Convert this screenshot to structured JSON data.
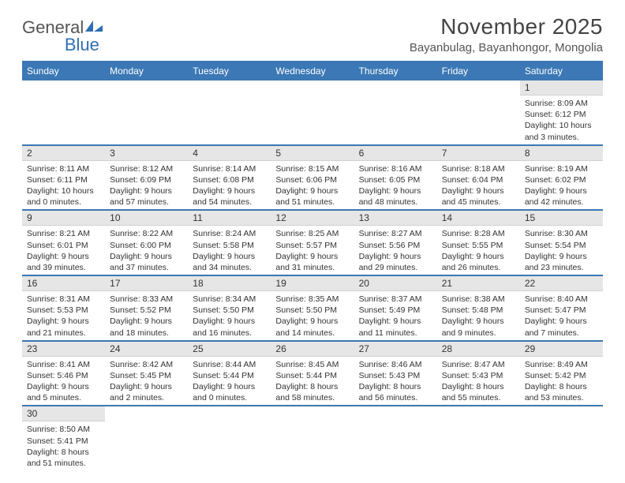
{
  "logo": {
    "text1": "General",
    "text2": "Blue"
  },
  "title": "November 2025",
  "location": "Bayanbulag, Bayanhongor, Mongolia",
  "colors": {
    "header_bg": "#3b78b5",
    "header_text": "#ffffff",
    "daynum_bg": "#e6e6e6",
    "row_border": "#3b78b5",
    "text": "#333333",
    "title_text": "#444444"
  },
  "fonts": {
    "title_size": 28,
    "location_size": 15,
    "th_size": 12,
    "body_size": 10.5
  },
  "day_headers": [
    "Sunday",
    "Monday",
    "Tuesday",
    "Wednesday",
    "Thursday",
    "Friday",
    "Saturday"
  ],
  "weeks": [
    [
      null,
      null,
      null,
      null,
      null,
      null,
      {
        "n": "1",
        "sr": "8:09 AM",
        "ss": "6:12 PM",
        "dl": "10 hours and 3 minutes."
      }
    ],
    [
      {
        "n": "2",
        "sr": "8:11 AM",
        "ss": "6:11 PM",
        "dl": "10 hours and 0 minutes."
      },
      {
        "n": "3",
        "sr": "8:12 AM",
        "ss": "6:09 PM",
        "dl": "9 hours and 57 minutes."
      },
      {
        "n": "4",
        "sr": "8:14 AM",
        "ss": "6:08 PM",
        "dl": "9 hours and 54 minutes."
      },
      {
        "n": "5",
        "sr": "8:15 AM",
        "ss": "6:06 PM",
        "dl": "9 hours and 51 minutes."
      },
      {
        "n": "6",
        "sr": "8:16 AM",
        "ss": "6:05 PM",
        "dl": "9 hours and 48 minutes."
      },
      {
        "n": "7",
        "sr": "8:18 AM",
        "ss": "6:04 PM",
        "dl": "9 hours and 45 minutes."
      },
      {
        "n": "8",
        "sr": "8:19 AM",
        "ss": "6:02 PM",
        "dl": "9 hours and 42 minutes."
      }
    ],
    [
      {
        "n": "9",
        "sr": "8:21 AM",
        "ss": "6:01 PM",
        "dl": "9 hours and 39 minutes."
      },
      {
        "n": "10",
        "sr": "8:22 AM",
        "ss": "6:00 PM",
        "dl": "9 hours and 37 minutes."
      },
      {
        "n": "11",
        "sr": "8:24 AM",
        "ss": "5:58 PM",
        "dl": "9 hours and 34 minutes."
      },
      {
        "n": "12",
        "sr": "8:25 AM",
        "ss": "5:57 PM",
        "dl": "9 hours and 31 minutes."
      },
      {
        "n": "13",
        "sr": "8:27 AM",
        "ss": "5:56 PM",
        "dl": "9 hours and 29 minutes."
      },
      {
        "n": "14",
        "sr": "8:28 AM",
        "ss": "5:55 PM",
        "dl": "9 hours and 26 minutes."
      },
      {
        "n": "15",
        "sr": "8:30 AM",
        "ss": "5:54 PM",
        "dl": "9 hours and 23 minutes."
      }
    ],
    [
      {
        "n": "16",
        "sr": "8:31 AM",
        "ss": "5:53 PM",
        "dl": "9 hours and 21 minutes."
      },
      {
        "n": "17",
        "sr": "8:33 AM",
        "ss": "5:52 PM",
        "dl": "9 hours and 18 minutes."
      },
      {
        "n": "18",
        "sr": "8:34 AM",
        "ss": "5:50 PM",
        "dl": "9 hours and 16 minutes."
      },
      {
        "n": "19",
        "sr": "8:35 AM",
        "ss": "5:50 PM",
        "dl": "9 hours and 14 minutes."
      },
      {
        "n": "20",
        "sr": "8:37 AM",
        "ss": "5:49 PM",
        "dl": "9 hours and 11 minutes."
      },
      {
        "n": "21",
        "sr": "8:38 AM",
        "ss": "5:48 PM",
        "dl": "9 hours and 9 minutes."
      },
      {
        "n": "22",
        "sr": "8:40 AM",
        "ss": "5:47 PM",
        "dl": "9 hours and 7 minutes."
      }
    ],
    [
      {
        "n": "23",
        "sr": "8:41 AM",
        "ss": "5:46 PM",
        "dl": "9 hours and 5 minutes."
      },
      {
        "n": "24",
        "sr": "8:42 AM",
        "ss": "5:45 PM",
        "dl": "9 hours and 2 minutes."
      },
      {
        "n": "25",
        "sr": "8:44 AM",
        "ss": "5:44 PM",
        "dl": "9 hours and 0 minutes."
      },
      {
        "n": "26",
        "sr": "8:45 AM",
        "ss": "5:44 PM",
        "dl": "8 hours and 58 minutes."
      },
      {
        "n": "27",
        "sr": "8:46 AM",
        "ss": "5:43 PM",
        "dl": "8 hours and 56 minutes."
      },
      {
        "n": "28",
        "sr": "8:47 AM",
        "ss": "5:43 PM",
        "dl": "8 hours and 55 minutes."
      },
      {
        "n": "29",
        "sr": "8:49 AM",
        "ss": "5:42 PM",
        "dl": "8 hours and 53 minutes."
      }
    ],
    [
      {
        "n": "30",
        "sr": "8:50 AM",
        "ss": "5:41 PM",
        "dl": "8 hours and 51 minutes."
      },
      null,
      null,
      null,
      null,
      null,
      null
    ]
  ],
  "labels": {
    "sunrise": "Sunrise:",
    "sunset": "Sunset:",
    "daylight": "Daylight:"
  }
}
